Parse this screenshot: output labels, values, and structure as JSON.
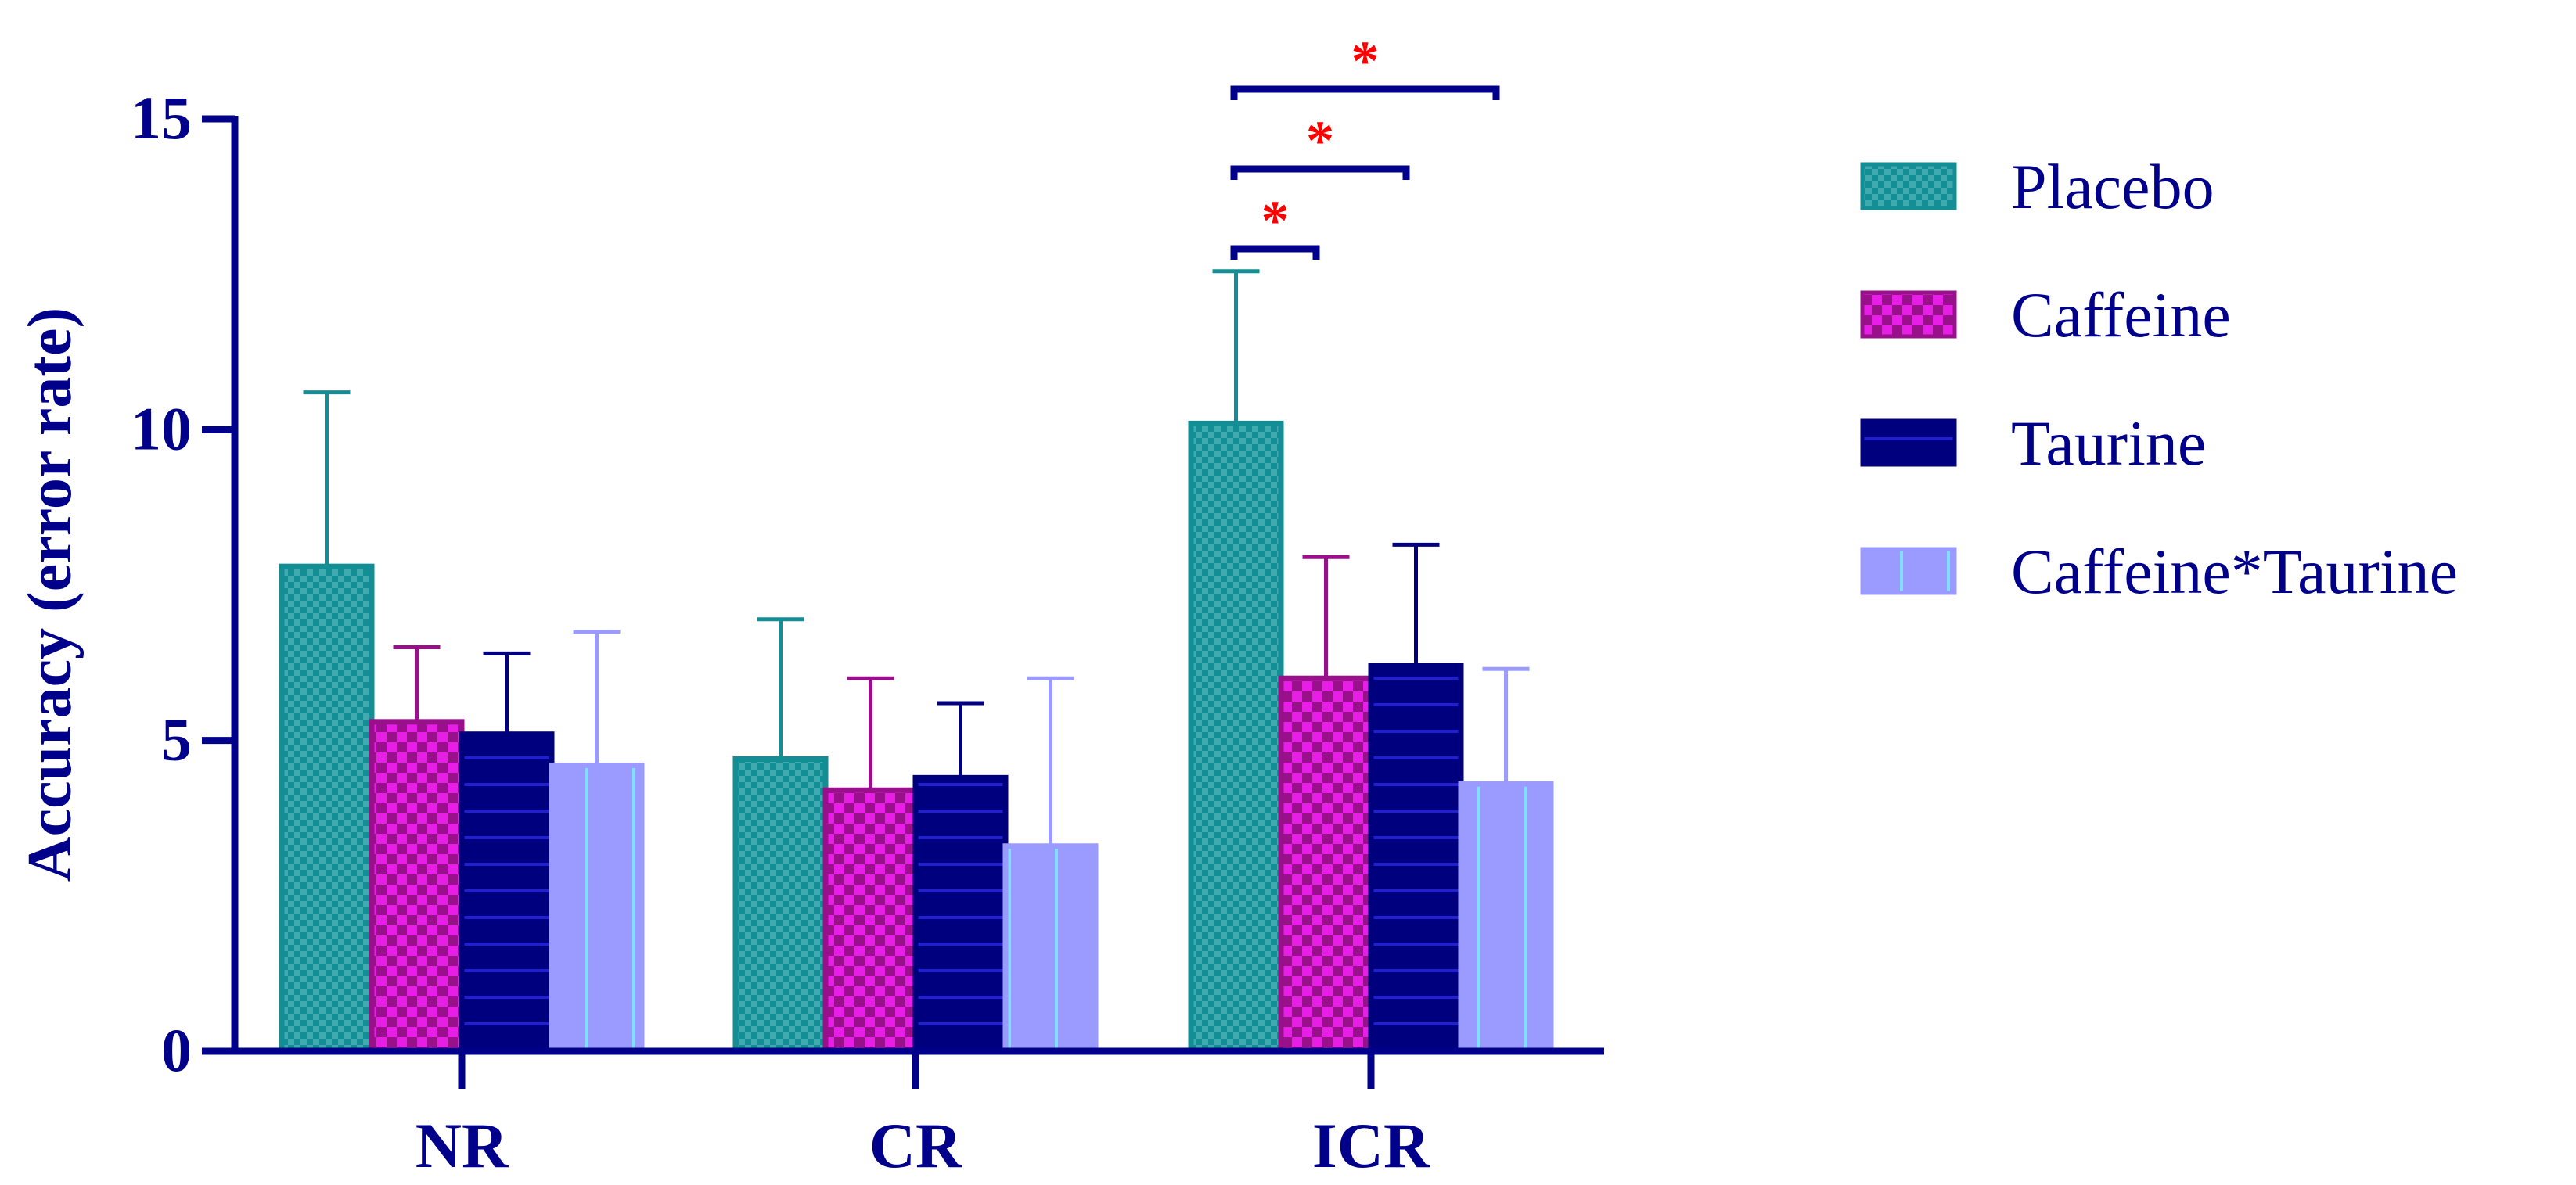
{
  "chart_data": {
    "type": "bar",
    "title": "",
    "xlabel": "",
    "ylabel": "Accuracy (error rate)",
    "ylim": [
      0,
      15
    ],
    "yticks": [
      0,
      5,
      10,
      15
    ],
    "categories": [
      "NR",
      "CR",
      "ICR"
    ],
    "error_bars": "upper",
    "series": [
      {
        "name": "Placebo",
        "color": "#138E95",
        "pattern": "checker",
        "values": [
          7.8,
          4.7,
          10.1
        ],
        "errors": [
          2.8,
          2.25,
          2.45
        ]
      },
      {
        "name": "Caffeine",
        "color": "#99118A",
        "pattern": "pink-checker",
        "values": [
          5.3,
          4.2,
          6.0
        ],
        "errors": [
          1.2,
          1.8,
          1.95
        ]
      },
      {
        "name": "Taurine",
        "color": "#00007F",
        "pattern": "horizontal-lines",
        "values": [
          5.1,
          4.4,
          6.2
        ],
        "errors": [
          1.3,
          1.2,
          1.95
        ]
      },
      {
        "name": "Caffeine*Taurine",
        "color": "#9B9BFF",
        "pattern": "vertical-lines",
        "values": [
          4.6,
          3.3,
          4.3
        ],
        "errors": [
          2.15,
          2.7,
          1.85
        ]
      }
    ],
    "annotations": [
      {
        "category": "ICR",
        "from": "Placebo",
        "to": "Caffeine",
        "label": "*"
      },
      {
        "category": "ICR",
        "from": "Placebo",
        "to": "Taurine",
        "label": "*"
      },
      {
        "category": "ICR",
        "from": "Placebo",
        "to": "Caffeine*Taurine",
        "label": "*"
      }
    ],
    "legend": {
      "position": "right",
      "entries": [
        "Placebo",
        "Caffeine",
        "Taurine",
        "Caffeine*Taurine"
      ]
    },
    "axis_color": "#00008B",
    "annotation_color": "#FF0000"
  }
}
